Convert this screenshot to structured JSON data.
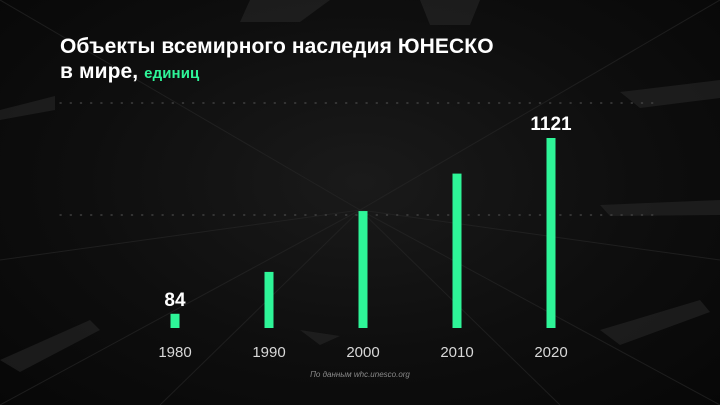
{
  "title_line1": "Объекты всемирного наследия ЮНЕСКО",
  "title_line2": "в мире,",
  "unit": "единиц",
  "source": "По данным whc.unesco.org",
  "accent_color": "#2ef598",
  "chart_data": {
    "type": "bar",
    "categories": [
      "1980",
      "1990",
      "2000",
      "2010",
      "2020"
    ],
    "values": [
      84,
      331,
      690,
      911,
      1121
    ],
    "data_labels": [
      "84",
      "",
      "",
      "",
      "1121"
    ],
    "title": "Объекты всемирного наследия ЮНЕСКО в мире, единиц",
    "xlabel": "",
    "ylabel": "",
    "ylim": [
      0,
      1121
    ],
    "grid": "dotted horizontal",
    "legend": "none"
  }
}
